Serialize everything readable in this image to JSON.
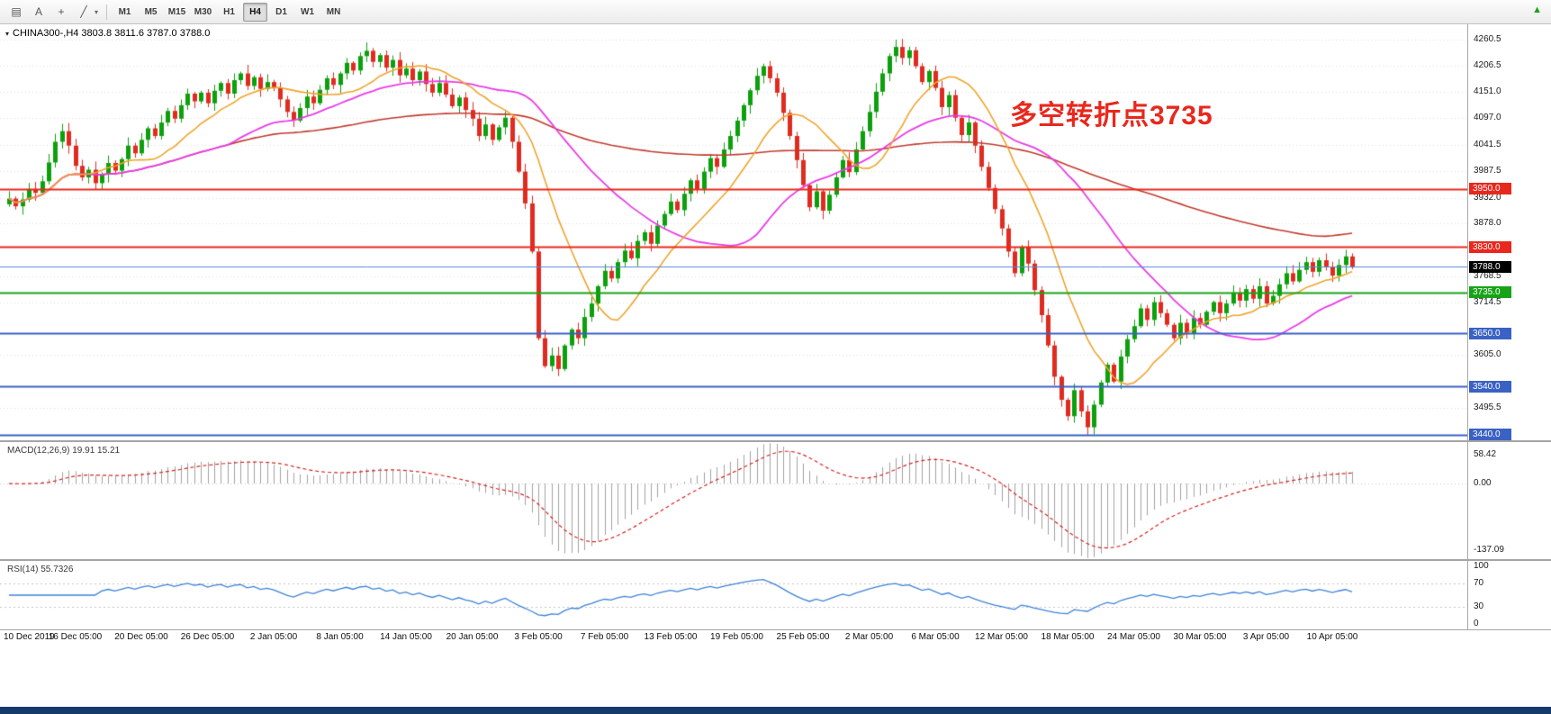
{
  "toolbar": {
    "icons": [
      {
        "name": "chart-windows-icon",
        "glyph": "▤"
      },
      {
        "name": "cursor-tool-icon",
        "glyph": "A"
      },
      {
        "name": "crosshair-icon",
        "glyph": "+"
      },
      {
        "name": "drawing-tools-icon",
        "glyph": "╱"
      }
    ],
    "timeframes": [
      "M1",
      "M5",
      "M15",
      "M30",
      "H1",
      "H4",
      "D1",
      "W1",
      "MN"
    ],
    "active_timeframe": "H4",
    "corner_glyph": "▲"
  },
  "chart": {
    "symbol_header": "CHINA300-,H4  3803.8 3811.6 3787.0 3788.0",
    "annotation": "多空转折点3735",
    "annotation_color": "#e8281e",
    "price_axis": [
      {
        "value": 4260.5,
        "label": "4260.5"
      },
      {
        "value": 4206.5,
        "label": "4206.5"
      },
      {
        "value": 4151.0,
        "label": "4151.0"
      },
      {
        "value": 4097.0,
        "label": "4097.0"
      },
      {
        "value": 4041.5,
        "label": "4041.5"
      },
      {
        "value": 3987.5,
        "label": "3987.5"
      },
      {
        "value": 3932.0,
        "label": "3932.0"
      },
      {
        "value": 3878.0,
        "label": "3878.0"
      },
      {
        "value": 3768.5,
        "label": "3768.5"
      },
      {
        "value": 3714.5,
        "label": "3714.5"
      },
      {
        "value": 3605.0,
        "label": "3605.0"
      },
      {
        "value": 3495.5,
        "label": "3495.5"
      }
    ],
    "hlines": [
      {
        "price": 3950,
        "label": "3950.0",
        "color": "#e8281e",
        "width": 2
      },
      {
        "price": 3830,
        "label": "3830.0",
        "color": "#e8281e",
        "width": 2
      },
      {
        "price": 3735,
        "label": "3735.0",
        "color": "#17a317",
        "width": 2
      },
      {
        "price": 3650,
        "label": "3650.0",
        "color": "#3a61c4",
        "width": 2
      },
      {
        "price": 3540,
        "label": "3540.0",
        "color": "#3a61c4",
        "width": 2
      },
      {
        "price": 3440,
        "label": "3440.0",
        "color": "#3a61c4",
        "width": 2
      }
    ],
    "price_line": {
      "price": 3789,
      "color": "#5b85d6"
    },
    "current": {
      "price": 3788,
      "label": "3788.0",
      "bg": "#000000"
    }
  },
  "chart_data": {
    "type": "candlestick",
    "title": "CHINA300-,H4",
    "symbol": "CHINA300-",
    "timeframe": "H4",
    "last_bar": {
      "open": 3803.8,
      "high": 3811.6,
      "low": 3787.0,
      "close": 3788.0
    },
    "price_range": [
      3428,
      4292
    ],
    "bars_per_label": 10,
    "x_labels": [
      "10 Dec 2019",
      "16 Dec 05:00",
      "20 Dec 05:00",
      "26 Dec 05:00",
      "2 Jan 05:00",
      "8 Jan 05:00",
      "14 Jan 05:00",
      "20 Jan 05:00",
      "3 Feb 05:00",
      "7 Feb 05:00",
      "13 Feb 05:00",
      "19 Feb 05:00",
      "25 Feb 05:00",
      "2 Mar 05:00",
      "6 Mar 05:00",
      "12 Mar 05:00",
      "18 Mar 05:00",
      "24 Mar 05:00",
      "30 Mar 05:00",
      "3 Apr 05:00",
      "10 Apr 05:00"
    ],
    "closes": [
      3930,
      3914,
      3928,
      3950,
      3942,
      3966,
      4005,
      4048,
      4070,
      4040,
      3998,
      3974,
      3990,
      3962,
      3980,
      4004,
      3988,
      4012,
      4040,
      4024,
      4052,
      4076,
      4060,
      4088,
      4112,
      4096,
      4124,
      4148,
      4132,
      4150,
      4128,
      4154,
      4170,
      4148,
      4176,
      4190,
      4164,
      4182,
      4158,
      4172,
      4160,
      4136,
      4110,
      4092,
      4118,
      4142,
      4128,
      4156,
      4180,
      4166,
      4190,
      4212,
      4196,
      4226,
      4237,
      4214,
      4228,
      4202,
      4218,
      4186,
      4200,
      4176,
      4194,
      4168,
      4150,
      4170,
      4146,
      4122,
      4140,
      4114,
      4096,
      4060,
      4084,
      4052,
      4078,
      4098,
      4048,
      3986,
      3920,
      3820,
      3640,
      3582,
      3604,
      3576,
      3625,
      3658,
      3640,
      3684,
      3712,
      3748,
      3780,
      3764,
      3798,
      3822,
      3806,
      3842,
      3860,
      3836,
      3874,
      3898,
      3924,
      3906,
      3940,
      3968,
      3950,
      3986,
      4014,
      3996,
      4032,
      4060,
      4092,
      4124,
      4155,
      4185,
      4205,
      4180,
      4150,
      4108,
      4060,
      4010,
      3958,
      3912,
      3945,
      3905,
      3938,
      3974,
      4010,
      3985,
      4032,
      4070,
      4110,
      4152,
      4190,
      4226,
      4245,
      4222,
      4238,
      4205,
      4172,
      4195,
      4160,
      4120,
      4145,
      4098,
      4062,
      4088,
      4040,
      3996,
      3952,
      3908,
      3868,
      3820,
      3775,
      3830,
      3795,
      3740,
      3688,
      3625,
      3560,
      3512,
      3478,
      3532,
      3488,
      3455,
      3502,
      3548,
      3585,
      3550,
      3602,
      3638,
      3665,
      3702,
      3678,
      3715,
      3692,
      3668,
      3640,
      3672,
      3650,
      3682,
      3668,
      3695,
      3715,
      3692,
      3712,
      3735,
      3718,
      3742,
      3722,
      3748,
      3712,
      3728,
      3752,
      3775,
      3758,
      3782,
      3798,
      3778,
      3802,
      3788,
      3770,
      3792,
      3810,
      3788
    ],
    "moving_averages": [
      {
        "name": "MA-fast",
        "period": 13,
        "color": "#efa32b",
        "width": 1.6
      },
      {
        "name": "MA-mid",
        "period": 34,
        "color": "#e83ce8",
        "width": 1.8
      },
      {
        "name": "MA-slow",
        "period": 120,
        "color": "#c23a2e",
        "width": 1.6
      }
    ],
    "horizontal_levels": [
      3950,
      3830,
      3735,
      3650,
      3540,
      3440
    ],
    "indicators": [
      {
        "name": "MACD",
        "label": "MACD(12,26,9) 19.91 15.21",
        "macd": 19.91,
        "signal": 15.21,
        "range": [
          -155,
          85
        ],
        "axis": [
          {
            "value": 58.42,
            "label": "58.42"
          },
          {
            "value": 0,
            "label": "0.00"
          },
          {
            "value": -137.09,
            "label": "-137.09"
          }
        ]
      },
      {
        "name": "RSI",
        "label": "RSI(14) 55.7326",
        "value": 55.7326,
        "range": [
          -10,
          110
        ],
        "levels": [
          70,
          30
        ],
        "axis": [
          {
            "value": 100,
            "label": "100"
          },
          {
            "value": 70,
            "label": "70"
          },
          {
            "value": 30,
            "label": "30"
          },
          {
            "value": 0,
            "label": "0"
          }
        ]
      }
    ]
  }
}
